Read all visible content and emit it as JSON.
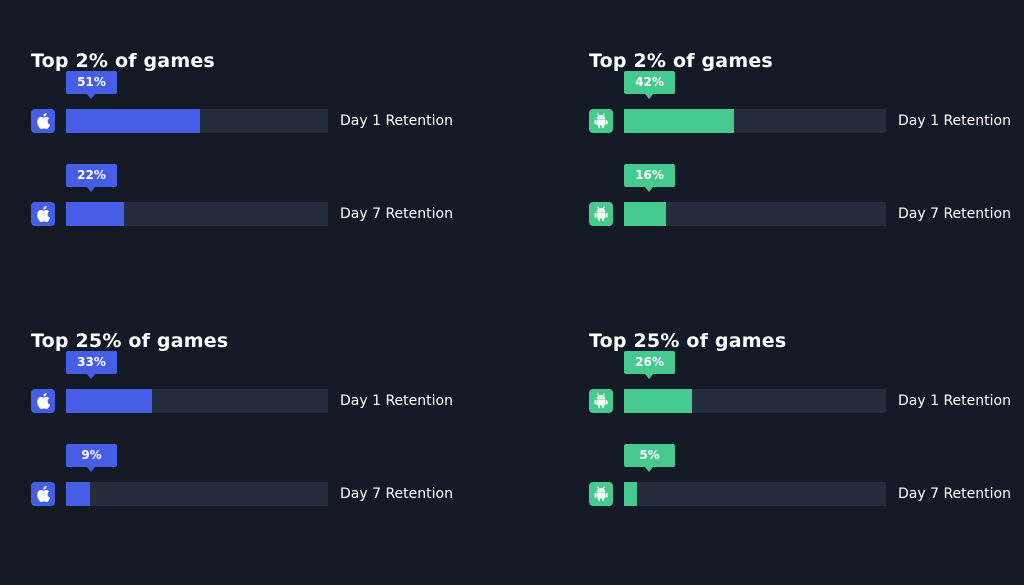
{
  "colors": {
    "background": "#131a26",
    "ios": "#465ee5",
    "android": "#46c98f",
    "track": "#252c3e"
  },
  "chart_data": [
    {
      "type": "bar",
      "platform": "ios",
      "icon": "apple-icon",
      "title": "Top 2% of games",
      "categories": [
        "Day 1 Retention",
        "Day 7 Retention"
      ],
      "values": [
        51,
        22
      ],
      "value_labels": [
        "51%",
        "22%"
      ],
      "unit": "%",
      "xlim": [
        0,
        100
      ]
    },
    {
      "type": "bar",
      "platform": "android",
      "icon": "android-icon",
      "title": "Top 2% of games",
      "categories": [
        "Day 1 Retention",
        "Day 7 Retention"
      ],
      "values": [
        42,
        16
      ],
      "value_labels": [
        "42%",
        "16%"
      ],
      "unit": "%",
      "xlim": [
        0,
        100
      ]
    },
    {
      "type": "bar",
      "platform": "ios",
      "icon": "apple-icon",
      "title": "Top 25% of games",
      "categories": [
        "Day 1 Retention",
        "Day 7 Retention"
      ],
      "values": [
        33,
        9
      ],
      "value_labels": [
        "33%",
        "9%"
      ],
      "unit": "%",
      "xlim": [
        0,
        100
      ]
    },
    {
      "type": "bar",
      "platform": "android",
      "icon": "android-icon",
      "title": "Top 25% of games",
      "categories": [
        "Day 1 Retention",
        "Day 7 Retention"
      ],
      "values": [
        26,
        5
      ],
      "value_labels": [
        "26%",
        "5%"
      ],
      "unit": "%",
      "xlim": [
        0,
        100
      ]
    }
  ]
}
